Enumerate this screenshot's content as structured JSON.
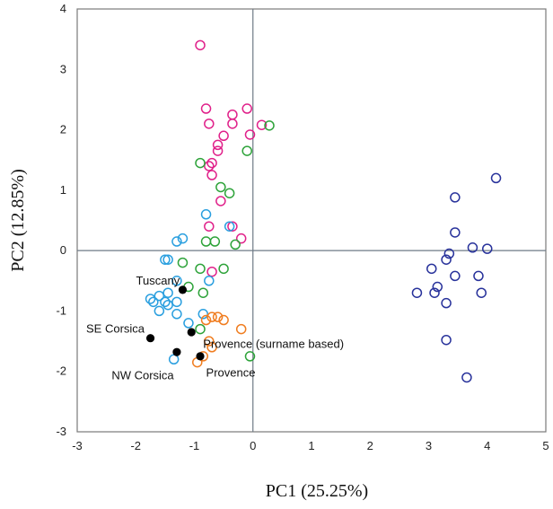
{
  "chart_data": {
    "type": "scatter",
    "xlabel": "PC1 (25.25%)",
    "ylabel": "PC2 (12.85%)",
    "xlim": [
      -3,
      5
    ],
    "ylim": [
      -3,
      4
    ],
    "xticks": [
      -3,
      -2,
      -1,
      0,
      1,
      2,
      3,
      4,
      5
    ],
    "yticks": [
      -3,
      -2,
      -1,
      0,
      1,
      2,
      3,
      4
    ],
    "grid": false,
    "zero_lines": true,
    "series": [
      {
        "color": "#e0218a",
        "marker": "open-circle",
        "points": [
          [
            -0.9,
            3.4
          ],
          [
            -0.8,
            2.35
          ],
          [
            -0.35,
            2.25
          ],
          [
            -0.1,
            2.35
          ],
          [
            0.15,
            2.08
          ],
          [
            -0.75,
            2.1
          ],
          [
            -0.35,
            2.1
          ],
          [
            -0.5,
            1.9
          ],
          [
            -0.6,
            1.75
          ],
          [
            -0.05,
            1.92
          ],
          [
            -0.6,
            1.65
          ],
          [
            -0.7,
            1.45
          ],
          [
            -0.75,
            1.4
          ],
          [
            -0.7,
            1.25
          ],
          [
            -0.55,
            0.82
          ],
          [
            -0.75,
            0.4
          ],
          [
            -0.35,
            0.4
          ],
          [
            -0.2,
            0.2
          ],
          [
            -0.7,
            -0.35
          ]
        ]
      },
      {
        "color": "#2ea33a",
        "marker": "open-circle",
        "points": [
          [
            0.28,
            2.07
          ],
          [
            -0.9,
            1.45
          ],
          [
            -0.1,
            1.65
          ],
          [
            -0.55,
            1.05
          ],
          [
            -0.4,
            0.95
          ],
          [
            -0.8,
            0.15
          ],
          [
            -0.65,
            0.15
          ],
          [
            -0.3,
            0.1
          ],
          [
            -1.2,
            -0.2
          ],
          [
            -0.9,
            -0.3
          ],
          [
            -0.5,
            -0.3
          ],
          [
            -1.1,
            -0.6
          ],
          [
            -0.85,
            -0.7
          ],
          [
            -0.9,
            -1.3
          ],
          [
            -0.05,
            -1.75
          ]
        ]
      },
      {
        "color": "#2a9fdf",
        "marker": "open-circle",
        "points": [
          [
            -1.2,
            0.2
          ],
          [
            -1.3,
            0.15
          ],
          [
            -0.8,
            0.6
          ],
          [
            -0.4,
            0.4
          ],
          [
            -1.45,
            -0.15
          ],
          [
            -1.5,
            -0.15
          ],
          [
            -1.3,
            -0.5
          ],
          [
            -0.75,
            -0.5
          ],
          [
            -1.45,
            -0.7
          ],
          [
            -1.6,
            -0.75
          ],
          [
            -1.75,
            -0.8
          ],
          [
            -1.7,
            -0.85
          ],
          [
            -1.5,
            -0.85
          ],
          [
            -1.45,
            -0.9
          ],
          [
            -1.3,
            -0.85
          ],
          [
            -1.6,
            -1.0
          ],
          [
            -1.3,
            -1.05
          ],
          [
            -1.1,
            -1.2
          ],
          [
            -0.85,
            -1.05
          ],
          [
            -1.35,
            -1.8
          ]
        ]
      },
      {
        "color": "#f07d20",
        "marker": "open-circle",
        "points": [
          [
            -0.7,
            -1.1
          ],
          [
            -0.6,
            -1.1
          ],
          [
            -0.5,
            -1.15
          ],
          [
            -0.8,
            -1.15
          ],
          [
            -0.2,
            -1.3
          ],
          [
            -0.75,
            -1.5
          ],
          [
            -0.7,
            -1.6
          ],
          [
            -0.95,
            -1.85
          ],
          [
            -0.85,
            -1.75
          ]
        ]
      },
      {
        "color": "#28329b",
        "marker": "open-circle",
        "points": [
          [
            4.15,
            1.2
          ],
          [
            3.45,
            0.88
          ],
          [
            3.45,
            0.3
          ],
          [
            3.75,
            0.05
          ],
          [
            4.0,
            0.03
          ],
          [
            3.3,
            -0.15
          ],
          [
            3.35,
            -0.05
          ],
          [
            3.05,
            -0.3
          ],
          [
            3.45,
            -0.42
          ],
          [
            3.85,
            -0.42
          ],
          [
            3.15,
            -0.6
          ],
          [
            3.9,
            -0.7
          ],
          [
            2.8,
            -0.7
          ],
          [
            3.1,
            -0.7
          ],
          [
            3.3,
            -0.87
          ],
          [
            3.3,
            -1.48
          ],
          [
            3.65,
            -2.1
          ]
        ]
      },
      {
        "color": "#000000",
        "marker": "filled-circle",
        "points": [
          [
            -1.2,
            -0.65
          ],
          [
            -1.75,
            -1.45
          ],
          [
            -1.05,
            -1.35
          ],
          [
            -1.3,
            -1.68
          ],
          [
            -0.9,
            -1.75
          ]
        ]
      }
    ],
    "annotations": [
      {
        "text": "Tuscany",
        "x": -1.25,
        "y": -0.5,
        "anchor": "end"
      },
      {
        "text": "SE Corsica",
        "x": -1.85,
        "y": -1.3,
        "anchor": "end"
      },
      {
        "text": "Provence (surname based)",
        "x": -0.85,
        "y": -1.55,
        "anchor": "start"
      },
      {
        "text": "NW Corsica",
        "x": -1.35,
        "y": -2.07,
        "anchor": "end"
      },
      {
        "text": "Provence",
        "x": -0.8,
        "y": -2.03,
        "anchor": "start"
      }
    ]
  }
}
